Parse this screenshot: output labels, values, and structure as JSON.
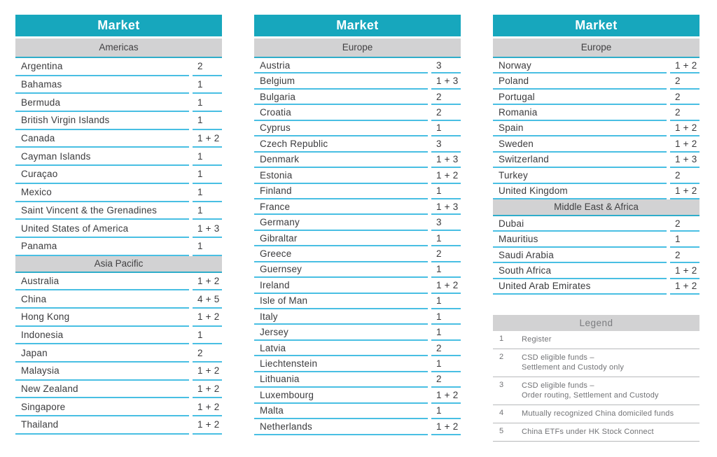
{
  "colors": {
    "header_teal": "#17a7bd",
    "row_divider_cyan": "#49bfe3",
    "subheader_border_teal": "#2fadca",
    "subheader_gray": "#d2d2d3",
    "row_text": "#3b3b3d",
    "legend_text_gray": "#717275",
    "legend_divider_gray": "#b7b9bb"
  },
  "tables": [
    {
      "title": "Market",
      "sections": [
        {
          "label": "Americas",
          "rows": [
            {
              "market": "Argentina",
              "value": "2"
            },
            {
              "market": "Bahamas",
              "value": "1"
            },
            {
              "market": "Bermuda",
              "value": "1"
            },
            {
              "market": "British Virgin Islands",
              "value": "1"
            },
            {
              "market": "Canada",
              "value": "1 + 2"
            },
            {
              "market": "Cayman Islands",
              "value": "1"
            },
            {
              "market": "Curaçao",
              "value": "1"
            },
            {
              "market": "Mexico",
              "value": "1"
            },
            {
              "market": "Saint Vincent & the Grenadines",
              "value": "1"
            },
            {
              "market": "United States of America",
              "value": "1 + 3"
            },
            {
              "market": "Panama",
              "value": "1"
            }
          ]
        },
        {
          "label": "Asia Pacific",
          "rows": [
            {
              "market": "Australia",
              "value": "1 + 2"
            },
            {
              "market": "China",
              "value": "4 + 5"
            },
            {
              "market": "Hong Kong",
              "value": "1 + 2"
            },
            {
              "market": "Indonesia",
              "value": "1"
            },
            {
              "market": "Japan",
              "value": "2"
            },
            {
              "market": "Malaysia",
              "value": "1 + 2"
            },
            {
              "market": "New Zealand",
              "value": "1 + 2"
            },
            {
              "market": "Singapore",
              "value": "1 + 2"
            },
            {
              "market": "Thailand",
              "value": "1 + 2"
            }
          ]
        }
      ]
    },
    {
      "title": "Market",
      "sections": [
        {
          "label": "Europe",
          "rows": [
            {
              "market": "Austria",
              "value": "3"
            },
            {
              "market": "Belgium",
              "value": "1 + 3"
            },
            {
              "market": "Bulgaria",
              "value": "2"
            },
            {
              "market": "Croatia",
              "value": "2"
            },
            {
              "market": "Cyprus",
              "value": "1"
            },
            {
              "market": "Czech Republic",
              "value": "3"
            },
            {
              "market": "Denmark",
              "value": "1 + 3"
            },
            {
              "market": "Estonia",
              "value": "1 + 2"
            },
            {
              "market": "Finland",
              "value": "1"
            },
            {
              "market": "France",
              "value": "1 + 3"
            },
            {
              "market": "Germany",
              "value": "3"
            },
            {
              "market": "Gibraltar",
              "value": "1"
            },
            {
              "market": "Greece",
              "value": "2"
            },
            {
              "market": "Guernsey",
              "value": "1"
            },
            {
              "market": "Ireland",
              "value": "1 + 2"
            },
            {
              "market": "Isle of Man",
              "value": "1"
            },
            {
              "market": "Italy",
              "value": "1"
            },
            {
              "market": "Jersey",
              "value": "1"
            },
            {
              "market": "Latvia",
              "value": "2"
            },
            {
              "market": "Liechtenstein",
              "value": "1"
            },
            {
              "market": "Lithuania",
              "value": "2"
            },
            {
              "market": "Luxembourg",
              "value": "1 + 2"
            },
            {
              "market": "Malta",
              "value": "1"
            },
            {
              "market": "Netherlands",
              "value": "1 + 2"
            }
          ]
        }
      ]
    },
    {
      "title": "Market",
      "sections": [
        {
          "label": "Europe",
          "rows": [
            {
              "market": "Norway",
              "value": "1 + 2"
            },
            {
              "market": "Poland",
              "value": "2"
            },
            {
              "market": "Portugal",
              "value": "2"
            },
            {
              "market": "Romania",
              "value": "2"
            },
            {
              "market": "Spain",
              "value": "1 + 2"
            },
            {
              "market": "Sweden",
              "value": "1 + 2"
            },
            {
              "market": "Switzerland",
              "value": "1 + 3"
            },
            {
              "market": "Turkey",
              "value": "2"
            },
            {
              "market": "United Kingdom",
              "value": "1 + 2"
            }
          ]
        },
        {
          "label": "Middle East & Africa",
          "rows": [
            {
              "market": "Dubai",
              "value": "2"
            },
            {
              "market": "Mauritius",
              "value": "1"
            },
            {
              "market": "Saudi Arabia",
              "value": "2"
            },
            {
              "market": "South Africa",
              "value": "1 + 2"
            },
            {
              "market": "United Arab Emirates",
              "value": "1 + 2"
            }
          ]
        }
      ]
    }
  ],
  "legend": {
    "title": "Legend",
    "items": [
      {
        "key": "1",
        "lines": [
          "Register"
        ]
      },
      {
        "key": "2",
        "lines": [
          "CSD eligible funds –",
          "Settlement and Custody only"
        ]
      },
      {
        "key": "3",
        "lines": [
          "CSD eligible funds –",
          "Order routing, Settlement and Custody"
        ]
      },
      {
        "key": "4",
        "lines": [
          "Mutually recognized China domiciled funds"
        ]
      },
      {
        "key": "5",
        "lines": [
          "China ETFs under HK Stock Connect"
        ]
      }
    ]
  }
}
